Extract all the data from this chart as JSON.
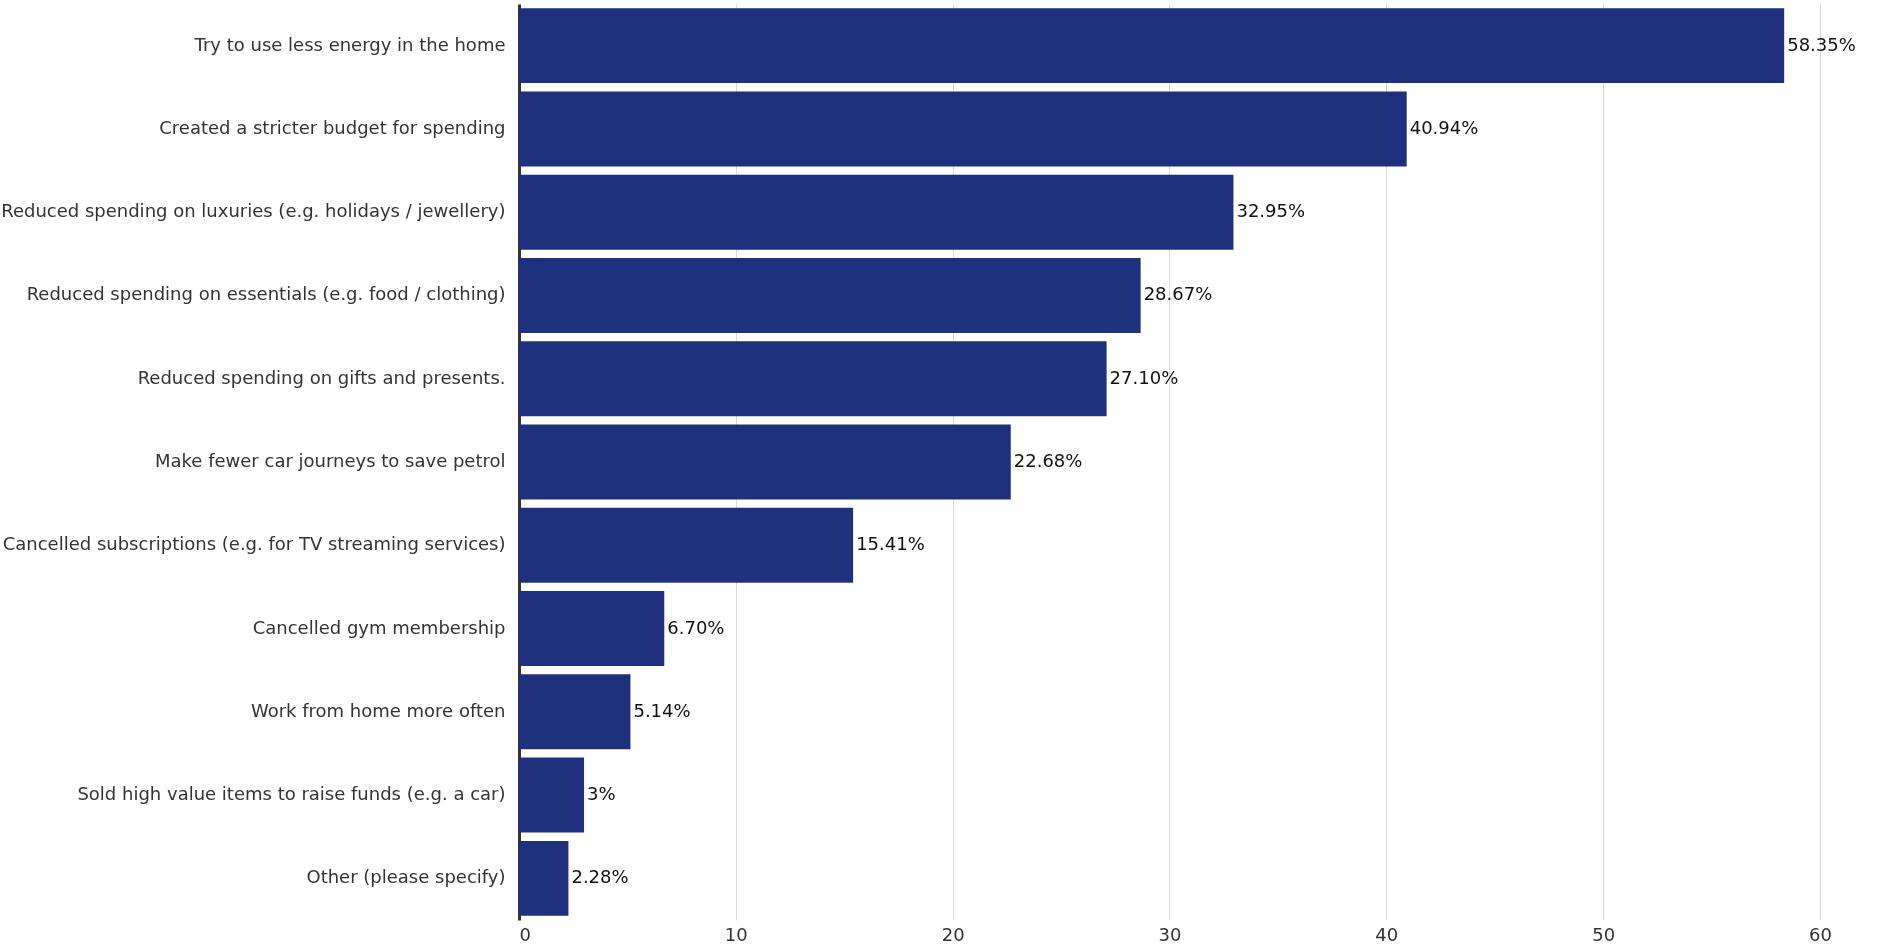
{
  "chart_data": {
    "type": "bar",
    "orientation": "horizontal",
    "categories": [
      "Try to use less energy in the home",
      "Created a stricter budget for spending",
      "Reduced spending on luxuries (e.g. holidays / jewellery)",
      "Reduced spending on essentials (e.g. food / clothing)",
      "Reduced spending on gifts and presents.",
      "Make fewer car journeys to save petrol",
      "Cancelled subscriptions (e.g. for TV streaming services)",
      "Cancelled gym membership",
      "Work from home more often",
      "Sold high value items to raise funds (e.g. a car)",
      "Other (please specify)"
    ],
    "values": [
      58.35,
      40.94,
      32.95,
      28.67,
      27.1,
      22.68,
      15.41,
      6.7,
      5.14,
      3,
      2.28
    ],
    "value_labels": [
      "58.35%",
      "40.94%",
      "32.95%",
      "28.67%",
      "27.10%",
      "22.68%",
      "15.41%",
      "6.70%",
      "5.14%",
      "3%",
      "2.28%"
    ],
    "color": "#1f307d",
    "xlim": [
      0,
      63
    ],
    "xticks": [
      0,
      10,
      20,
      30,
      40,
      50,
      60
    ],
    "grid": "x"
  }
}
